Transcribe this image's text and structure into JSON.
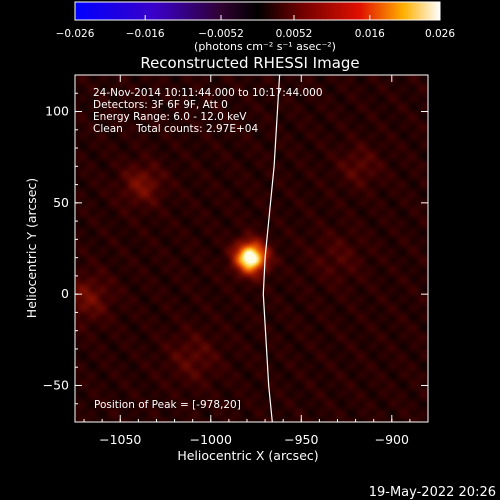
{
  "chart_data": {
    "type": "heatmap",
    "title": "Reconstructed RHESSI Image",
    "xlabel": "Heliocentric X (arcsec)",
    "ylabel": "Heliocentric Y (arcsec)",
    "xlim": [
      -1075,
      -880
    ],
    "ylim": [
      -70,
      120
    ],
    "x_ticks": [
      -1050,
      -1000,
      -950,
      -900
    ],
    "y_ticks": [
      -50,
      0,
      50,
      100
    ],
    "x_tick_labels": [
      "−1050",
      "−1000",
      "−950",
      "−900"
    ],
    "y_tick_labels": [
      "−50",
      "0",
      "50",
      "100"
    ],
    "colorbar": {
      "range": [
        -0.026,
        0.026
      ],
      "ticks": [
        -0.026,
        -0.016,
        -0.0052,
        0.0052,
        0.016,
        0.026
      ],
      "tick_labels": [
        "−0.026",
        "−0.016",
        "−0.0052",
        "0.0052",
        "0.016",
        "0.026"
      ],
      "unit_label": "(photons cm⁻² s⁻¹ asec⁻²)"
    },
    "annotations": [
      "24-Nov-2014 10:11:44.000 to 10:17:44.000",
      "Detectors: 3F 6F 9F, Att 0",
      "Energy Range: 6.0 - 12.0 keV",
      "Clean    Total counts: 2.97E+04"
    ],
    "peak_label": "Position of Peak = [-978,20]",
    "peak": [
      -978,
      20
    ],
    "limb_x_at_y": [
      [
        -962,
        120
      ],
      [
        -965,
        70
      ],
      [
        -970,
        20
      ],
      [
        -971,
        0
      ],
      [
        -968,
        -50
      ],
      [
        -966,
        -70
      ]
    ],
    "hotspots": [
      {
        "x": -978,
        "y": 20,
        "amp": 1.0,
        "sigma": 6
      },
      {
        "x": -1038,
        "y": 60,
        "amp": 0.22,
        "sigma": 8
      },
      {
        "x": -1068,
        "y": -2,
        "amp": 0.2,
        "sigma": 9
      },
      {
        "x": -1010,
        "y": -35,
        "amp": 0.14,
        "sigma": 10
      },
      {
        "x": -918,
        "y": 70,
        "amp": 0.14,
        "sigma": 8
      },
      {
        "x": -930,
        "y": 20,
        "amp": 0.1,
        "sigma": 10
      }
    ]
  },
  "footer": {
    "timestamp": "19-May-2022 20:26"
  }
}
